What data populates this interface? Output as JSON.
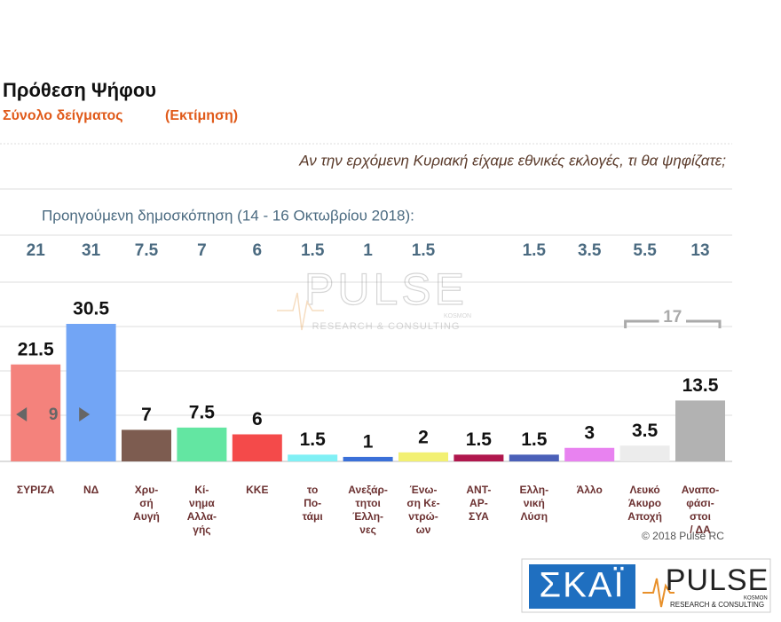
{
  "chart_data": {
    "type": "bar",
    "title": "Πρόθεση Ψήφου",
    "subtitle": "Σύνολο δείγματος",
    "subtitle_note": "(Εκτίμηση)",
    "question": "Αν την ερχόμενη Κυριακή είχαμε εθνικές εκλογές, τι θα ψηφίζατε;",
    "previous_label": "Προηγούμενη δημοσκόπηση (14 - 16 Οκτωβρίου 2018):",
    "categories": [
      "ΣΥΡΙΖΑ",
      "ΝΔ",
      "Χρυ-\nσή\nΑυγή",
      "Κί-\nνημα\nΑλλα-\nγής",
      "ΚΚΕ",
      "το\nΠο-\nτάμι",
      "Ανεξάρ-\nτητοι\nΈλλη-\nνες",
      "Ένω-\nση Κε-\nντρώ-\nων",
      "ΑΝΤ-\nΑΡ-\nΣΥΑ",
      "Ελλη-\nνική\nΛύση",
      "Άλλο",
      "Λευκό\nΆκυρο\nΑποχή",
      "Αναπο-\nφάσι-\nστοι\n/ ΔΑ"
    ],
    "values": [
      21.5,
      30.5,
      7,
      7.5,
      6,
      1.5,
      1,
      2,
      1.5,
      1.5,
      3,
      3.5,
      13.5
    ],
    "colors": [
      "#f4827c",
      "#72a5f5",
      "#7d5c50",
      "#63e6a2",
      "#f44a4a",
      "#80f0f5",
      "#3b70d8",
      "#f2f072",
      "#b0174d",
      "#4b60b8",
      "#e882f0",
      "#ececec",
      "#b2b2b2"
    ],
    "previous_values": [
      21,
      31,
      7.5,
      7,
      6,
      1.5,
      1,
      1.5,
      null,
      1.5,
      3.5,
      5.5,
      13
    ],
    "difference": 9,
    "bracket_total": 17,
    "copyright": "© 2018 Pulse RC"
  },
  "logos": {
    "skai": "ΣΚΑΪ",
    "pulse": "PULSE",
    "pulse_tagline": "RESEARCH & CONSULTING",
    "pulse_partner": "KOSMON"
  }
}
